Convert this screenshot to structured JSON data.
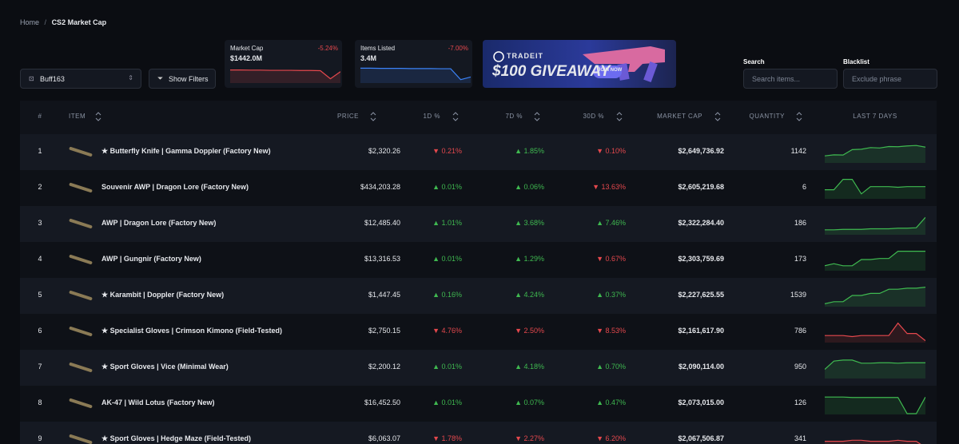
{
  "breadcrumb": {
    "home": "Home",
    "separator": "/",
    "current": "CS2 Market Cap"
  },
  "source_select": "Buff163",
  "filter_button": "Show Filters",
  "stats": [
    {
      "label": "Market Cap",
      "change": "-5.24%",
      "value": "$1442.0M",
      "color": "#e5484d",
      "trend": [
        70,
        70,
        69,
        69,
        68,
        68,
        68,
        67,
        67,
        66,
        20,
        60
      ]
    },
    {
      "label": "Items Listed",
      "change": "-7.00%",
      "value": "3.4M",
      "color": "#3b82f6",
      "trend": [
        80,
        80,
        79,
        79,
        79,
        78,
        78,
        78,
        77,
        77,
        15,
        30
      ]
    }
  ],
  "banner": {
    "brand": "TRADEIT",
    "headline": "$100 GIVEAWAY",
    "cta": "JOIN NOW"
  },
  "search": {
    "label": "Search",
    "placeholder": "Search items..."
  },
  "blacklist": {
    "label": "Blacklist",
    "placeholder": "Exclude phrase"
  },
  "table": {
    "columns": [
      "#",
      "ITEM",
      "PRICE",
      "1D %",
      "7D %",
      "30D %",
      "MARKET CAP",
      "QUANTITY",
      "LAST 7 DAYS"
    ],
    "rows": [
      {
        "rank": 1,
        "item": "★ Butterfly Knife | Gamma Doppler (Factory New)",
        "price": "$2,320.26",
        "d1": "▼ 0.21%",
        "d7": "▲ 1.85%",
        "d30": "▼ 0.10%",
        "market_cap": "$2,649,736.92",
        "quantity": 1142,
        "trend_color": "#3fb950",
        "trend": [
          30,
          35,
          34,
          60,
          62,
          70,
          68,
          75,
          74,
          78,
          80,
          72
        ]
      },
      {
        "rank": 2,
        "item": "Souvenir AWP | Dragon Lore (Factory New)",
        "price": "$434,203.28",
        "d1": "▲ 0.01%",
        "d7": "▲ 0.06%",
        "d30": "▼ 13.63%",
        "market_cap": "$2,605,219.68",
        "quantity": 6,
        "trend_color": "#3fb950",
        "trend": [
          40,
          40,
          90,
          90,
          20,
          55,
          55,
          55,
          52,
          55,
          55,
          55
        ]
      },
      {
        "rank": 3,
        "item": "AWP | Dragon Lore (Factory New)",
        "price": "$12,485.40",
        "d1": "▲ 1.01%",
        "d7": "▲ 3.68%",
        "d30": "▲ 7.46%",
        "market_cap": "$2,322,284.40",
        "quantity": 186,
        "trend_color": "#3fb950",
        "trend": [
          20,
          20,
          22,
          22,
          22,
          25,
          25,
          25,
          28,
          28,
          30,
          80
        ]
      },
      {
        "rank": 4,
        "item": "AWP | Gungnir (Factory New)",
        "price": "$13,316.53",
        "d1": "▲ 0.01%",
        "d7": "▲ 1.29%",
        "d30": "▼ 0.67%",
        "market_cap": "$2,303,759.69",
        "quantity": 173,
        "trend_color": "#3fb950",
        "trend": [
          20,
          30,
          20,
          20,
          50,
          50,
          55,
          55,
          90,
          90,
          90,
          90
        ]
      },
      {
        "rank": 5,
        "item": "★ Karambit | Doppler (Factory New)",
        "price": "$1,447.45",
        "d1": "▲ 0.16%",
        "d7": "▲ 4.24%",
        "d30": "▲ 0.37%",
        "market_cap": "$2,227,625.55",
        "quantity": 1539,
        "trend_color": "#3fb950",
        "trend": [
          10,
          20,
          20,
          50,
          50,
          60,
          60,
          80,
          80,
          85,
          85,
          90
        ]
      },
      {
        "rank": 6,
        "item": "★ Specialist Gloves | Crimson Kimono (Field-Tested)",
        "price": "$2,750.15",
        "d1": "▼ 4.76%",
        "d7": "▼ 2.50%",
        "d30": "▼ 8.53%",
        "market_cap": "$2,161,617.90",
        "quantity": 786,
        "trend_color": "#e5484d",
        "trend": [
          30,
          30,
          30,
          25,
          30,
          30,
          30,
          30,
          90,
          40,
          40,
          5
        ]
      },
      {
        "rank": 7,
        "item": "★ Sport Gloves | Vice (Minimal Wear)",
        "price": "$2,200.12",
        "d1": "▲ 0.01%",
        "d7": "▲ 4.18%",
        "d30": "▲ 0.70%",
        "market_cap": "$2,090,114.00",
        "quantity": 950,
        "trend_color": "#3fb950",
        "trend": [
          40,
          80,
          85,
          85,
          70,
          70,
          72,
          72,
          70,
          72,
          72,
          72
        ]
      },
      {
        "rank": 8,
        "item": "AK-47 | Wild Lotus (Factory New)",
        "price": "$16,452.50",
        "d1": "▲ 0.01%",
        "d7": "▲ 0.07%",
        "d30": "▲ 0.47%",
        "market_cap": "$2,073,015.00",
        "quantity": 126,
        "trend_color": "#3fb950",
        "trend": [
          80,
          80,
          80,
          78,
          78,
          78,
          78,
          78,
          78,
          0,
          0,
          80
        ]
      },
      {
        "rank": 9,
        "item": "★ Sport Gloves | Hedge Maze (Field-Tested)",
        "price": "$6,063.07",
        "d1": "▼ 1.78%",
        "d7": "▼ 2.27%",
        "d30": "▼ 6.20%",
        "market_cap": "$2,067,506.87",
        "quantity": 341,
        "trend_color": "#e5484d",
        "trend": [
          40,
          40,
          40,
          45,
          45,
          40,
          40,
          40,
          45,
          40,
          40,
          10
        ]
      }
    ]
  }
}
